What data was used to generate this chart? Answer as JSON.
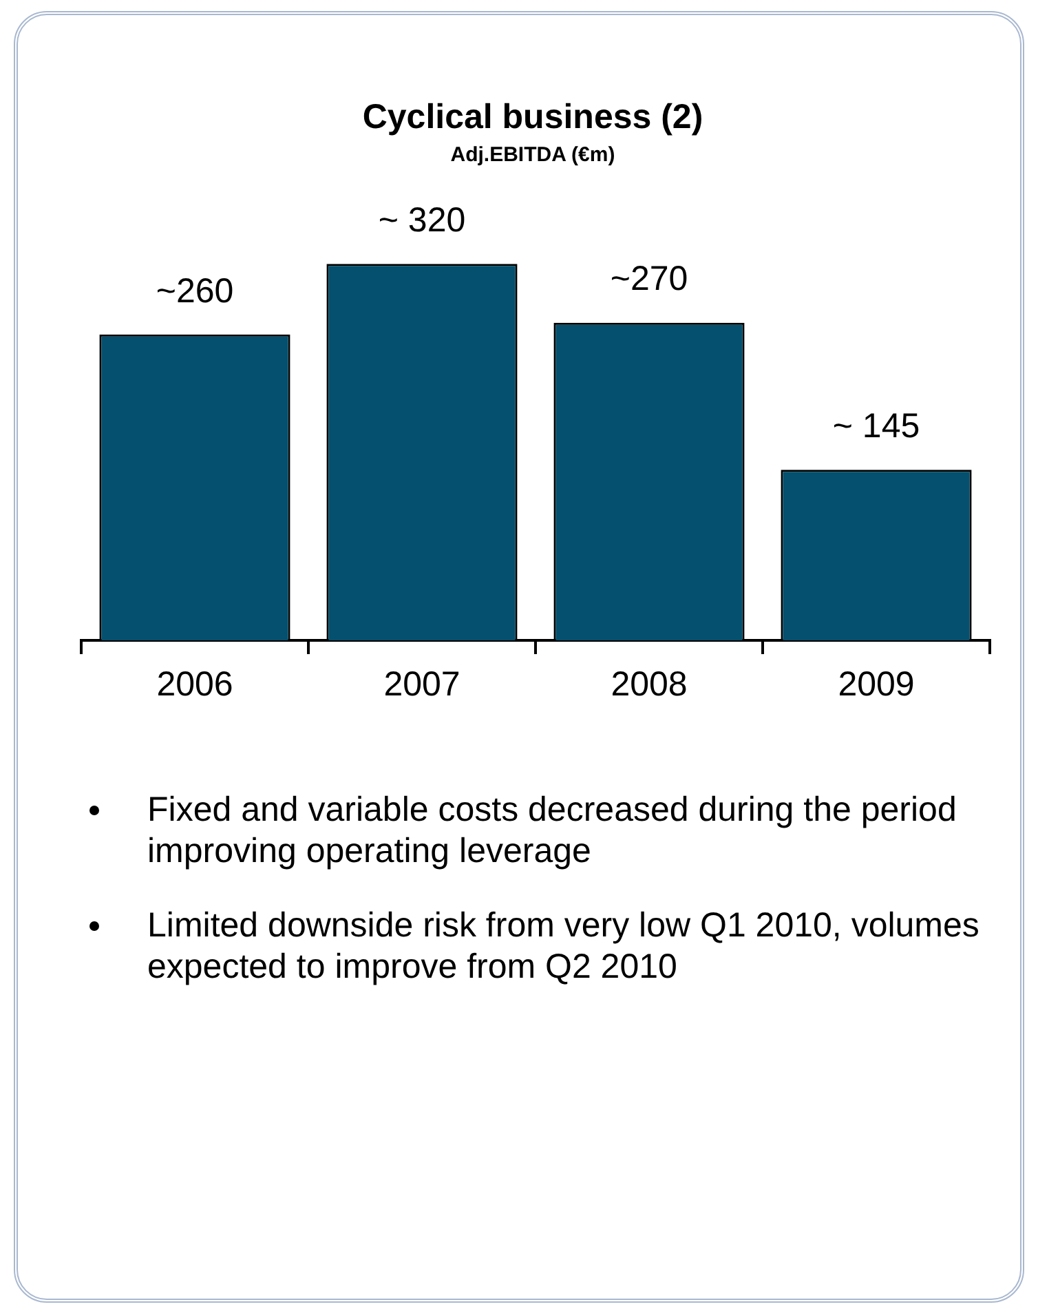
{
  "chart_data": {
    "type": "bar",
    "title": "Cyclical business (2)",
    "subtitle": "Adj.EBITDA (€m)",
    "categories": [
      "2006",
      "2007",
      "2008",
      "2009"
    ],
    "values": [
      260,
      320,
      270,
      145
    ],
    "value_labels": [
      "~260",
      "~ 320",
      "~270",
      "~ 145"
    ],
    "color": "#04506e",
    "grid": false,
    "legend": false,
    "annotations": [
      "Fixed and variable costs decreased during the period improving operating leverage",
      "Limited downside risk from very low Q1 2010, volumes expected to improve from Q2 2010"
    ]
  }
}
